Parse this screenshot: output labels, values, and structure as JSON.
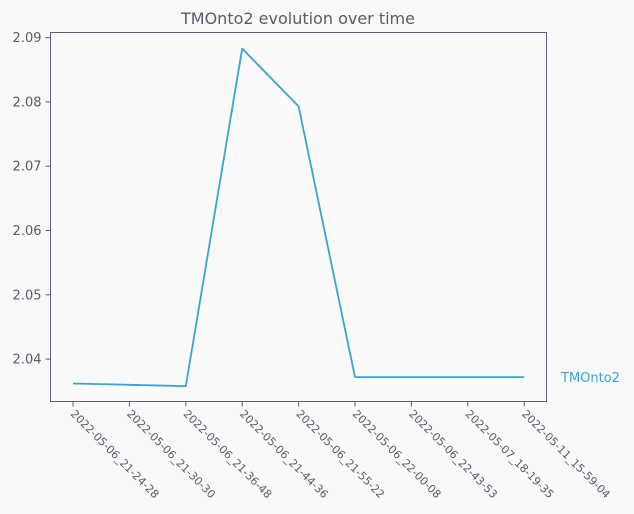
{
  "chart_data": {
    "type": "line",
    "title": "TMOnto2 evolution over time",
    "xlabel": "",
    "ylabel": "",
    "categories": [
      "2022-05-06_21-24-28",
      "2022-05-06_21-30-30",
      "2022-05-06_21-36-48",
      "2022-05-06_21-44-36",
      "2022-05-06_21-55-22",
      "2022-05-06_22-00-08",
      "2022-05-06_22-43-53",
      "2022-05-07_18-19-35",
      "2022-05-11_15-59-04"
    ],
    "series": [
      {
        "name": "TMOnto2",
        "color": "#3aa3d4",
        "values": [
          2.0362,
          2.036,
          2.0358,
          2.0883,
          2.0793,
          2.0372,
          2.0372,
          2.0372,
          2.0372
        ]
      }
    ],
    "ylim": [
      2.0334,
      2.0908
    ],
    "yticks": [
      2.04,
      2.05,
      2.06,
      2.07,
      2.08,
      2.09
    ],
    "ytick_labels": [
      "2.04",
      "2.05",
      "2.06",
      "2.07",
      "2.08",
      "2.09"
    ],
    "grid": false,
    "legend": "right of line end"
  }
}
